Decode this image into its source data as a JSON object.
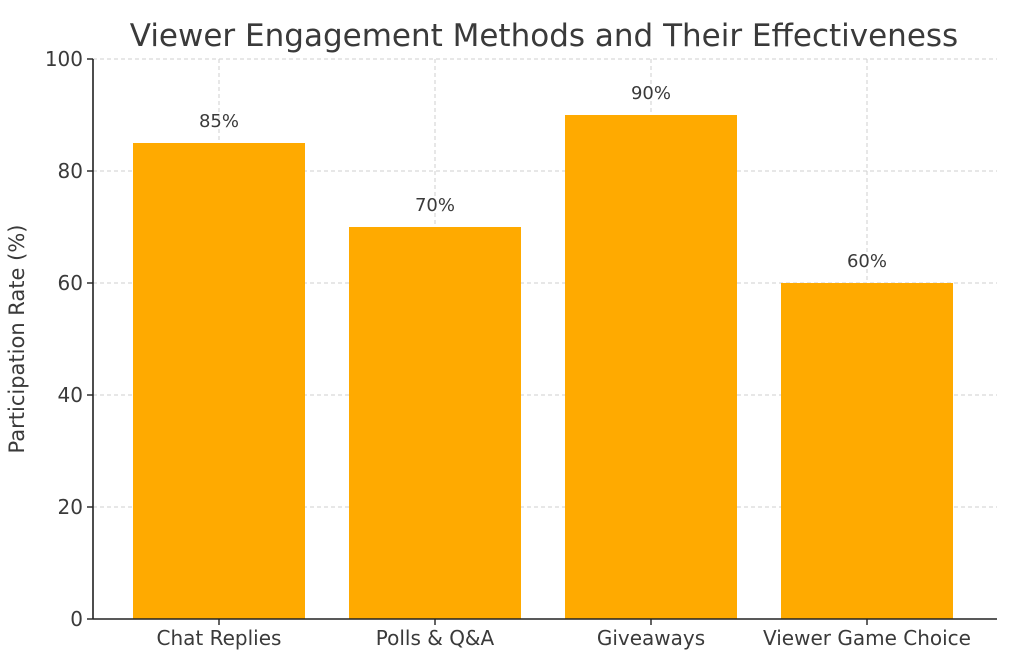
{
  "chart_data": {
    "type": "bar",
    "title": "Viewer Engagement Methods and Their Effectiveness",
    "xlabel": "",
    "ylabel": "Participation Rate (%)",
    "categories": [
      "Chat Replies",
      "Polls & Q&A",
      "Giveaways",
      "Viewer Game Choice"
    ],
    "values": [
      85,
      70,
      90,
      60
    ],
    "value_labels": [
      "85%",
      "70%",
      "90%",
      "60%"
    ],
    "ylim": [
      0,
      100
    ],
    "yticks": [
      0,
      20,
      40,
      60,
      80,
      100
    ],
    "ytick_labels": [
      "0",
      "20",
      "40",
      "60",
      "80",
      "100"
    ],
    "grid": true,
    "legend": false,
    "colors": {
      "bar": "#FFAA00",
      "grid": "#cfcfcf",
      "axis": "#222222",
      "text": "#3a3a3a"
    }
  }
}
